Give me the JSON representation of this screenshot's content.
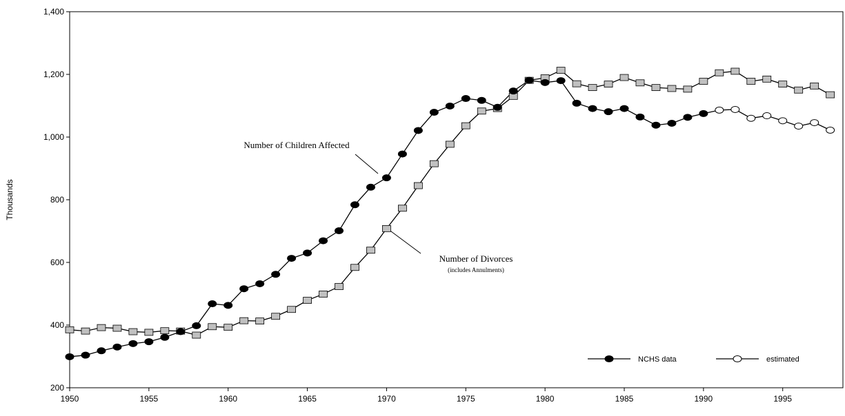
{
  "chart_data": {
    "type": "line",
    "y_label": "Thousands",
    "annotations": [
      "Number of Children Affected",
      "Number of Divorces",
      "(includes Annulments)"
    ],
    "x": [
      1950,
      1951,
      1952,
      1953,
      1954,
      1955,
      1956,
      1957,
      1958,
      1959,
      1960,
      1961,
      1962,
      1963,
      1964,
      1965,
      1966,
      1967,
      1968,
      1969,
      1970,
      1971,
      1972,
      1973,
      1974,
      1975,
      1976,
      1977,
      1978,
      1979,
      1980,
      1981,
      1982,
      1983,
      1984,
      1985,
      1986,
      1987,
      1988,
      1989,
      1990,
      1991,
      1992,
      1993,
      1994,
      1995,
      1996,
      1997,
      1998
    ],
    "series": [
      {
        "name": "NCHS data",
        "color": "#000000",
        "values": [
          299,
          304,
          318,
          330,
          341,
          347,
          361,
          379,
          398,
          468,
          463,
          516,
          532,
          562,
          613,
          630,
          669,
          701,
          784,
          840,
          870,
          946,
          1021,
          1079,
          1099,
          1123,
          1117,
          1095,
          1147,
          1181,
          1174,
          1180,
          1108,
          1091,
          1081,
          1091,
          1064,
          1038,
          1044,
          1063,
          1075,
          null,
          null,
          null,
          null,
          null,
          null,
          null,
          null
        ]
      },
      {
        "name": "estimated",
        "color": "#ffffff",
        "values": [
          null,
          null,
          null,
          null,
          null,
          null,
          null,
          null,
          null,
          null,
          null,
          null,
          null,
          null,
          null,
          null,
          null,
          null,
          null,
          null,
          null,
          null,
          null,
          null,
          null,
          null,
          null,
          null,
          null,
          null,
          null,
          null,
          null,
          null,
          null,
          null,
          null,
          null,
          null,
          null,
          null,
          1086,
          1088,
          1060,
          1068,
          1052,
          1035,
          1046,
          1022
        ]
      }
    ],
    "divorces": {
      "color": "#c0c0c0",
      "values": [
        385,
        381,
        392,
        390,
        379,
        377,
        382,
        381,
        368,
        395,
        393,
        414,
        413,
        428,
        450,
        479,
        499,
        523,
        584,
        639,
        708,
        773,
        845,
        915,
        977,
        1036,
        1083,
        1091,
        1130,
        1181,
        1189,
        1213,
        1170,
        1158,
        1169,
        1190,
        1173,
        1158,
        1155,
        1153,
        1178,
        1205,
        1210,
        1178,
        1185,
        1169,
        1150,
        1163,
        1135
      ]
    },
    "xlim": [
      1950,
      1998.8
    ],
    "xticks": [
      1950,
      1955,
      1960,
      1965,
      1970,
      1975,
      1980,
      1985,
      1990,
      1995
    ],
    "ylim": [
      200,
      1400
    ],
    "yticks": [
      200,
      400,
      600,
      800,
      {
        "value": 1000,
        "label": "1,000"
      },
      {
        "value": 1200,
        "label": "1,200"
      },
      {
        "value": 1400,
        "label": "1,400"
      }
    ]
  }
}
